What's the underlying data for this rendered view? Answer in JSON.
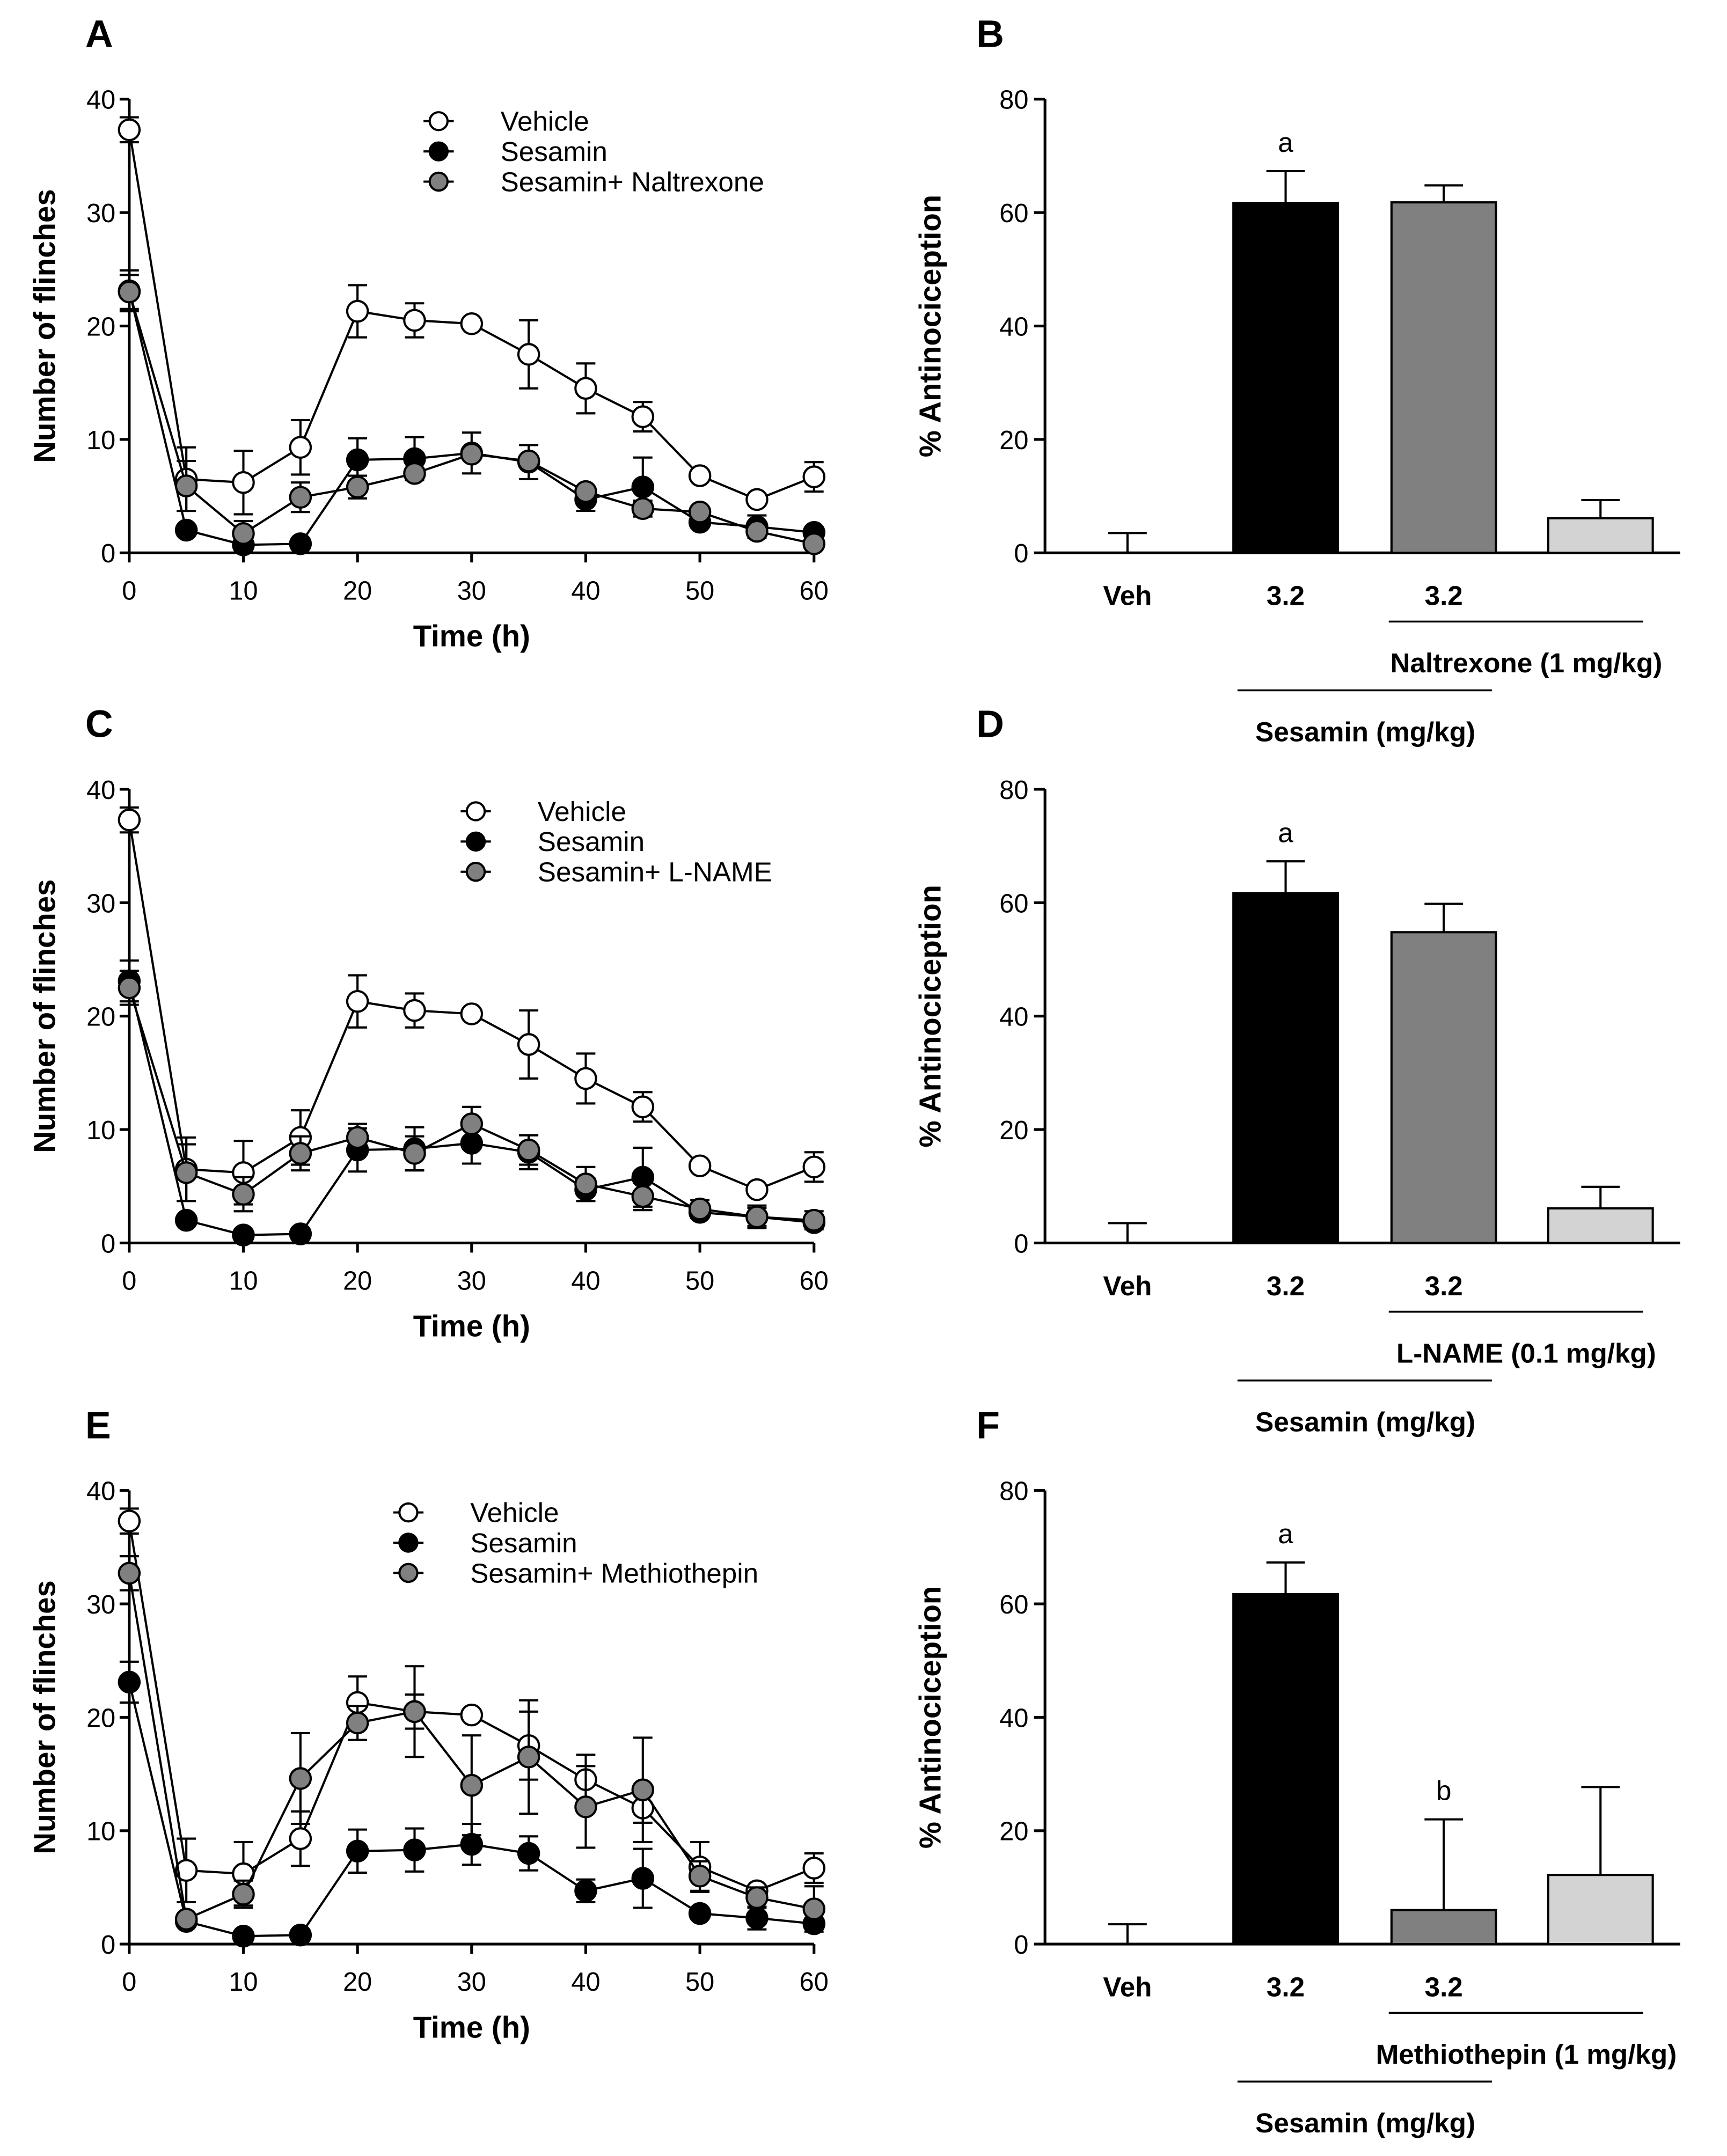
{
  "chart_data": [
    {
      "panel": "A",
      "type": "line",
      "xlabel": "Time (h)",
      "ylabel": "Number of flinches",
      "xlim": [
        0,
        60
      ],
      "ylim": [
        0,
        40
      ],
      "xticks": [
        0,
        10,
        20,
        30,
        40,
        50,
        60
      ],
      "yticks": [
        0,
        10,
        20,
        30,
        40
      ],
      "legend_position": "top-right",
      "x": [
        0,
        5,
        10,
        15,
        20,
        25,
        30,
        35,
        40,
        45,
        50,
        55,
        60
      ],
      "series": [
        {
          "name": "Vehicle",
          "fill": "#ffffff",
          "values": [
            37.3,
            6.5,
            6.2,
            9.3,
            21.3,
            20.5,
            20.2,
            17.5,
            14.5,
            12,
            6.8,
            4.7,
            6.7
          ],
          "errors": [
            1.1,
            2.8,
            2.8,
            2.4,
            2.3,
            1.5,
            0,
            3,
            2.2,
            1.3,
            0,
            0,
            1.3
          ]
        },
        {
          "name": "Sesamin",
          "fill": "#000000",
          "values": [
            23.1,
            2,
            0.7,
            0.8,
            8.2,
            8.3,
            8.8,
            8,
            4.7,
            5.8,
            2.7,
            2.3,
            1.8
          ],
          "errors": [
            1.8,
            0,
            0,
            0,
            1.9,
            1.9,
            1.8,
            1.5,
            1,
            2.6,
            0,
            1,
            0
          ]
        },
        {
          "name": "Sesamin+ Naltrexone",
          "fill": "#808080",
          "values": [
            23,
            5.9,
            1.7,
            4.9,
            5.8,
            7,
            8.7,
            8.1,
            5.4,
            3.9,
            3.6,
            1.9,
            0.8
          ],
          "errors": [
            1.5,
            2.2,
            1.1,
            1.3,
            1,
            0,
            0,
            0,
            0,
            0.7,
            0,
            0,
            0
          ]
        }
      ]
    },
    {
      "panel": "B",
      "type": "bar",
      "ylabel": "% Antinociception",
      "ylim": [
        0,
        80
      ],
      "yticks": [
        0,
        20,
        40,
        60,
        80
      ],
      "categories": [
        "Veh",
        "3.2",
        "3.2",
        ""
      ],
      "values": [
        0,
        61.7,
        61.8,
        6.1
      ],
      "errors": [
        3.5,
        5.6,
        3,
        3.2
      ],
      "colors": [
        "#ffffff",
        "#000000",
        "#808080",
        "#d3d3d3"
      ],
      "annotations": [
        "",
        "a",
        "",
        ""
      ],
      "treatment_label": "Naltrexone (1 mg/kg)",
      "group_label": "Sesamin (mg/kg)"
    },
    {
      "panel": "C",
      "type": "line",
      "xlabel": "Time (h)",
      "ylabel": "Number of flinches",
      "xlim": [
        0,
        60
      ],
      "ylim": [
        0,
        40
      ],
      "xticks": [
        0,
        10,
        20,
        30,
        40,
        50,
        60
      ],
      "yticks": [
        0,
        10,
        20,
        30,
        40
      ],
      "legend_position": "top-right",
      "x": [
        0,
        5,
        10,
        15,
        20,
        25,
        30,
        35,
        40,
        45,
        50,
        55,
        60
      ],
      "series": [
        {
          "name": "Vehicle",
          "fill": "#ffffff",
          "values": [
            37.3,
            6.5,
            6.2,
            9.3,
            21.3,
            20.5,
            20.2,
            17.5,
            14.5,
            12,
            6.8,
            4.7,
            6.7
          ],
          "errors": [
            1.1,
            2.8,
            2.8,
            2.4,
            2.3,
            1.5,
            0,
            3,
            2.2,
            1.3,
            0,
            0,
            1.3
          ]
        },
        {
          "name": "Sesamin",
          "fill": "#000000",
          "values": [
            23.1,
            2,
            0.7,
            0.8,
            8.2,
            8.3,
            8.8,
            8,
            4.7,
            5.8,
            2.7,
            2.3,
            1.8
          ],
          "errors": [
            1.8,
            0,
            0,
            0,
            1.9,
            1.9,
            1.8,
            1.5,
            1,
            2.6,
            0,
            1,
            0
          ]
        },
        {
          "name": "Sesamin+ L-NAME",
          "fill": "#808080",
          "values": [
            22.5,
            6.2,
            4.3,
            7.9,
            9.3,
            7.9,
            10.5,
            8.2,
            5.2,
            4.1,
            3,
            2.3,
            2
          ],
          "errors": [
            1.5,
            2.5,
            1.5,
            1.5,
            1.2,
            1.5,
            1.5,
            1.3,
            1.5,
            1.2,
            0.8,
            0.8,
            0.8
          ]
        }
      ]
    },
    {
      "panel": "D",
      "type": "bar",
      "ylabel": "% Antinociception",
      "ylim": [
        0,
        80
      ],
      "yticks": [
        0,
        20,
        40,
        60,
        80
      ],
      "categories": [
        "Veh",
        "3.2",
        "3.2",
        ""
      ],
      "values": [
        0,
        61.7,
        54.8,
        6.1
      ],
      "errors": [
        3.5,
        5.6,
        5,
        3.8
      ],
      "colors": [
        "#ffffff",
        "#000000",
        "#808080",
        "#d3d3d3"
      ],
      "annotations": [
        "",
        "a",
        "",
        ""
      ],
      "treatment_label": "L-NAME (0.1 mg/kg)",
      "group_label": "Sesamin (mg/kg)"
    },
    {
      "panel": "E",
      "type": "line",
      "xlabel": "Time (h)",
      "ylabel": "Number of flinches",
      "xlim": [
        0,
        60
      ],
      "ylim": [
        0,
        40
      ],
      "xticks": [
        0,
        10,
        20,
        30,
        40,
        50,
        60
      ],
      "yticks": [
        0,
        10,
        20,
        30,
        40
      ],
      "legend_position": "top-right",
      "x": [
        0,
        5,
        10,
        15,
        20,
        25,
        30,
        35,
        40,
        45,
        50,
        55,
        60
      ],
      "series": [
        {
          "name": "Vehicle",
          "fill": "#ffffff",
          "values": [
            37.3,
            6.5,
            6.2,
            9.3,
            21.3,
            20.5,
            20.2,
            17.5,
            14.5,
            12,
            6.8,
            4.7,
            6.7
          ],
          "errors": [
            1.1,
            2.8,
            2.8,
            2.4,
            2.3,
            1.5,
            0,
            3,
            2.2,
            1.3,
            2.2,
            0,
            1.3
          ]
        },
        {
          "name": "Sesamin",
          "fill": "#000000",
          "values": [
            23.1,
            2,
            0.7,
            0.8,
            8.2,
            8.3,
            8.8,
            8,
            4.7,
            5.8,
            2.7,
            2.3,
            1.8
          ],
          "errors": [
            1.8,
            0,
            0,
            0,
            1.9,
            1.9,
            1.8,
            1.5,
            1,
            2.6,
            0,
            1,
            0
          ]
        },
        {
          "name": "Sesamin+ Methiothepin",
          "fill": "#808080",
          "values": [
            32.7,
            2.2,
            4.4,
            14.6,
            19.5,
            20.5,
            14,
            16.5,
            12.1,
            13.6,
            6,
            4.1,
            3.1
          ],
          "errors": [
            1.5,
            0,
            1.2,
            4,
            1.5,
            4,
            4.4,
            5,
            3.6,
            4.6,
            1.3,
            0.9,
            2
          ]
        }
      ]
    },
    {
      "panel": "F",
      "type": "bar",
      "ylabel": "% Antinociception",
      "ylim": [
        0,
        80
      ],
      "yticks": [
        0,
        20,
        40,
        60,
        80
      ],
      "categories": [
        "Veh",
        "3.2",
        "3.2",
        ""
      ],
      "values": [
        0,
        61.7,
        6,
        12.2
      ],
      "errors": [
        3.5,
        5.6,
        16,
        15.5
      ],
      "colors": [
        "#ffffff",
        "#000000",
        "#808080",
        "#d3d3d3"
      ],
      "annotations": [
        "",
        "a",
        "b",
        ""
      ],
      "treatment_label": "Methiothepin (1 mg/kg)",
      "group_label": "Sesamin (mg/kg)"
    }
  ]
}
